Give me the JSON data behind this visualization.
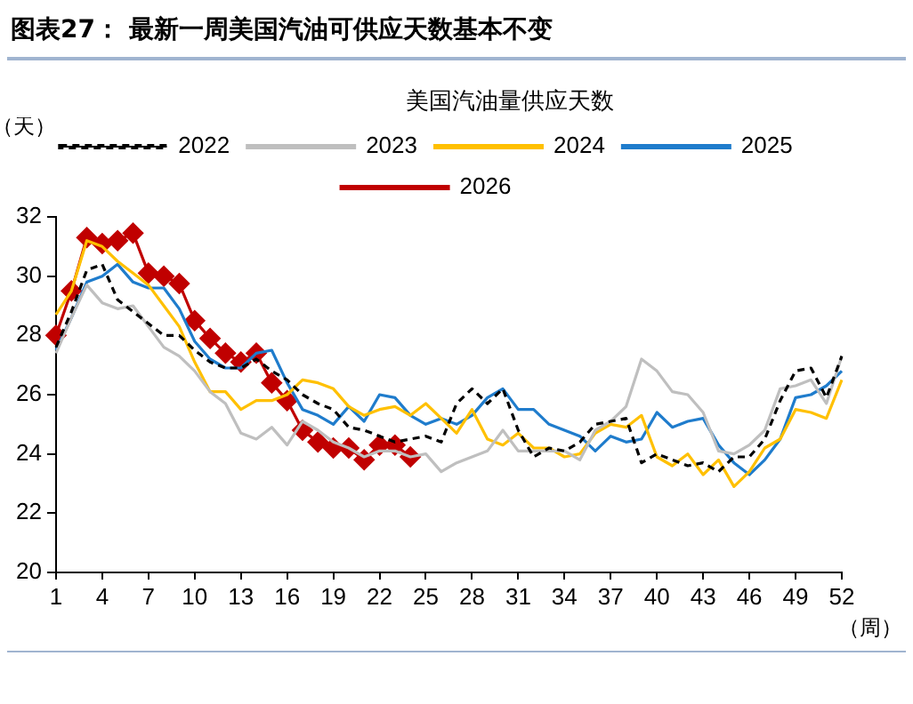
{
  "chart_data": {
    "type": "line",
    "title": "图表27：  最新一周美国汽油可供应天数基本不变",
    "subtitle": "美国汽油量供应天数",
    "ylabel": "（天）",
    "xlabel": "（周）",
    "categories": [
      "1",
      null,
      null,
      "4",
      null,
      null,
      "7",
      null,
      null,
      "10",
      null,
      null,
      "13",
      null,
      null,
      "16",
      null,
      null,
      "19",
      null,
      null,
      "22",
      null,
      null,
      "25",
      null,
      null,
      "28",
      null,
      null,
      "31",
      null,
      null,
      "34",
      null,
      null,
      "37",
      null,
      null,
      "40",
      null,
      null,
      "43",
      null,
      null,
      "46",
      null,
      null,
      "49",
      null,
      null,
      "52"
    ],
    "ylim": [
      20,
      32
    ],
    "yticks": [
      20,
      22,
      24,
      26,
      28,
      30,
      32
    ],
    "grid": false,
    "legend": "top",
    "marker": "none",
    "series": [
      {
        "name": "2022",
        "color": "#000000",
        "line_style": "dashed",
        "values": [
          27.6,
          28.8,
          30.2,
          30.4,
          29.2,
          28.8,
          28.4,
          28.0,
          28.0,
          27.5,
          27.1,
          26.9,
          26.9,
          27.2,
          26.8,
          26.5,
          26.0,
          25.7,
          25.5,
          24.9,
          24.8,
          24.6,
          24.4,
          24.5,
          24.6,
          24.4,
          25.7,
          26.2,
          25.7,
          26.2,
          24.8,
          23.9,
          24.2,
          24.1,
          24.4,
          25.0,
          25.1,
          25.2,
          23.7,
          24.0,
          23.8,
          23.6,
          23.7,
          23.4,
          23.9,
          23.9,
          24.5,
          25.8,
          26.8,
          26.9,
          25.9,
          27.3
        ]
      },
      {
        "name": "2023",
        "color": "#bfbfbf",
        "values": [
          27.4,
          28.6,
          29.7,
          29.1,
          28.9,
          29.0,
          28.3,
          27.6,
          27.3,
          26.8,
          26.1,
          25.7,
          24.7,
          24.5,
          24.9,
          24.3,
          25.1,
          24.8,
          24.4,
          24.2,
          23.9,
          24.1,
          24.1,
          23.9,
          24.0,
          23.4,
          23.7,
          23.9,
          24.1,
          24.8,
          24.1,
          24.1,
          24.1,
          24.1,
          23.8,
          24.8,
          25.1,
          25.6,
          27.2,
          26.8,
          26.1,
          26.0,
          25.4,
          24.1,
          24.0,
          24.3,
          24.8,
          26.2,
          26.3,
          26.5,
          25.7,
          27.3
        ]
      },
      {
        "name": "2024",
        "color": "#ffc000",
        "values": [
          28.7,
          29.5,
          31.2,
          31.0,
          30.5,
          30.1,
          29.7,
          29.0,
          28.3,
          27.1,
          26.1,
          26.1,
          25.5,
          25.8,
          25.8,
          26.0,
          26.5,
          26.4,
          26.2,
          25.6,
          25.3,
          25.5,
          25.6,
          25.3,
          25.7,
          25.2,
          24.7,
          25.5,
          24.5,
          24.3,
          24.7,
          24.2,
          24.2,
          23.9,
          24.0,
          24.7,
          25.0,
          24.9,
          25.3,
          23.9,
          23.6,
          24.0,
          23.3,
          23.8,
          22.9,
          23.4,
          24.2,
          24.5,
          25.5,
          25.4,
          25.2,
          26.5
        ]
      },
      {
        "name": "2025",
        "color": "#1f7ccc",
        "values": [
          27.5,
          28.6,
          29.8,
          30.0,
          30.4,
          29.8,
          29.6,
          29.6,
          28.9,
          27.8,
          27.2,
          26.9,
          26.9,
          27.4,
          27.5,
          26.4,
          25.5,
          25.3,
          25.0,
          25.6,
          25.1,
          26.0,
          25.9,
          25.3,
          25.0,
          25.2,
          25.0,
          25.3,
          25.9,
          26.2,
          25.5,
          25.5,
          25.0,
          24.8,
          24.6,
          24.1,
          24.6,
          24.4,
          24.5,
          25.4,
          24.9,
          25.1,
          25.2,
          24.3,
          23.7,
          23.3,
          23.8,
          24.5,
          25.9,
          26.0,
          26.3,
          26.8
        ]
      },
      {
        "name": "2026",
        "color": "#c00000",
        "marker": "diamond",
        "values": [
          28.0,
          29.5,
          31.3,
          31.1,
          31.2,
          31.45,
          30.1,
          30.0,
          29.75,
          28.5,
          27.9,
          27.4,
          27.1,
          27.4,
          26.4,
          25.8,
          24.8,
          24.4,
          24.2,
          24.2,
          23.8,
          24.3,
          24.3,
          23.9,
          null,
          null,
          null,
          null,
          null,
          null,
          null,
          null,
          null,
          null,
          null,
          null,
          null,
          null,
          null,
          null,
          null,
          null,
          null,
          null,
          null,
          null,
          null,
          null,
          null,
          null,
          null,
          null
        ]
      }
    ]
  }
}
